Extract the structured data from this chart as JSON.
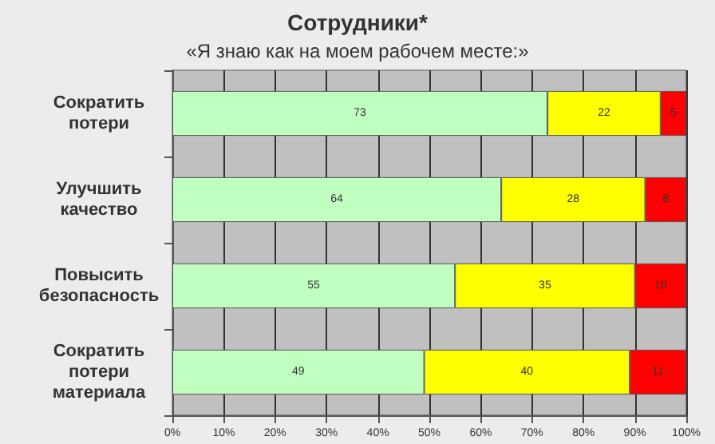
{
  "chart_data": {
    "type": "bar",
    "title": "Сотрудники*",
    "subtitle": "«Я знаю как на моем рабочем месте:»",
    "orientation": "horizontal",
    "stacked": true,
    "data_labels": true,
    "grid": "x",
    "categories": [
      "Сократить\nпотери",
      "Улучшить\nкачество",
      "Повысить\nбезопасность",
      "Сократить\nпотери\nматериала"
    ],
    "series": [
      {
        "color": "#c0ffc0",
        "values": [
          73,
          64,
          55,
          49
        ]
      },
      {
        "color": "#ffff00",
        "values": [
          22,
          28,
          35,
          40
        ]
      },
      {
        "color": "#ff0000",
        "values": [
          5,
          8,
          10,
          11
        ]
      }
    ],
    "xlim": [
      0,
      100
    ],
    "xticks": [
      {
        "value": 0,
        "label": "0%"
      },
      {
        "value": 10,
        "label": "10%"
      },
      {
        "value": 20,
        "label": "20%"
      },
      {
        "value": 30,
        "label": "30%"
      },
      {
        "value": 40,
        "label": "40%"
      },
      {
        "value": 50,
        "label": "50%"
      },
      {
        "value": 60,
        "label": "60%"
      },
      {
        "value": 70,
        "label": "70%"
      },
      {
        "value": 80,
        "label": "80%"
      },
      {
        "value": 90,
        "label": "90%"
      },
      {
        "value": 100,
        "label": "100%"
      }
    ]
  }
}
